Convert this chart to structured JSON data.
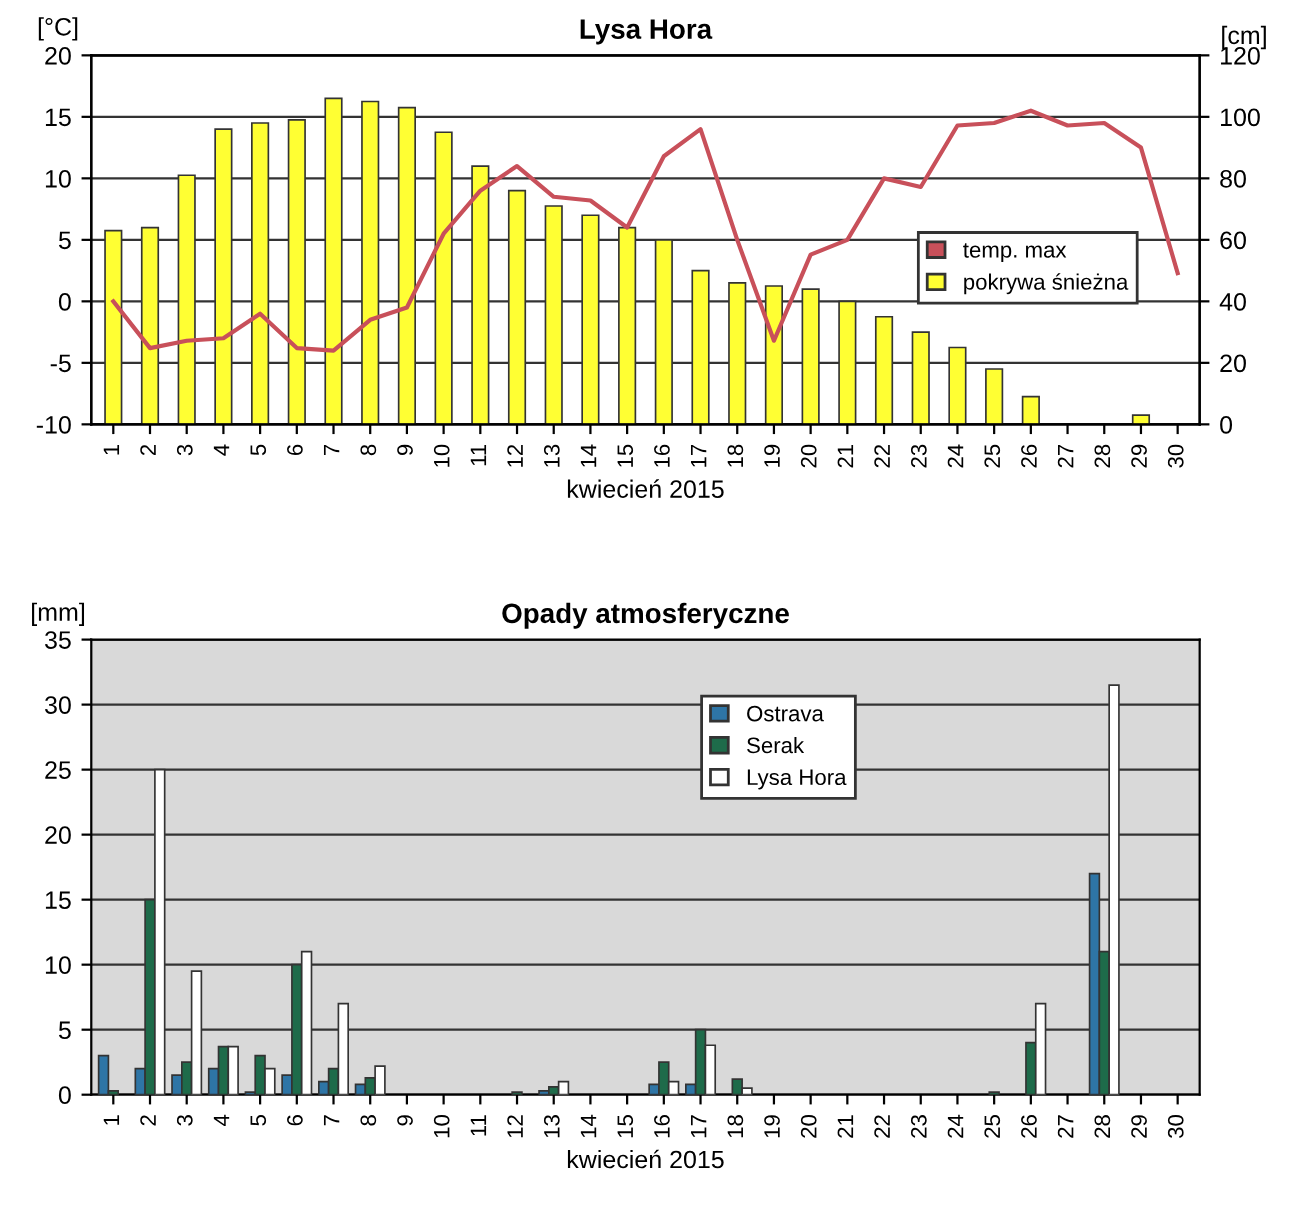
{
  "chart_data": [
    {
      "type": "bar",
      "title": "Lysa Hora",
      "xlabel": "kwiecień 2015",
      "ylabel": "[°C]",
      "y2label": "[cm]",
      "categories": [
        "1",
        "2",
        "3",
        "4",
        "5",
        "6",
        "7",
        "8",
        "9",
        "10",
        "11",
        "12",
        "13",
        "14",
        "15",
        "16",
        "17",
        "18",
        "19",
        "20",
        "21",
        "22",
        "23",
        "24",
        "25",
        "26",
        "27",
        "28",
        "29",
        "30"
      ],
      "series": [
        {
          "name": "temp. max",
          "type": "line",
          "color": "#c8505a",
          "values": [
            0,
            -3.8,
            -3.2,
            -3,
            -1,
            -3.8,
            -4,
            -1.5,
            -0.5,
            5.5,
            9,
            11,
            8.5,
            8.2,
            6,
            11.8,
            14,
            5,
            -3.2,
            3.8,
            5,
            10,
            9.3,
            14.3,
            14.5,
            15.5,
            14.3,
            14.5,
            12.5,
            2.3
          ]
        },
        {
          "name": "pokrywa śnieżna",
          "type": "bar",
          "axis": "y2",
          "color": "#ffff33",
          "values": [
            63,
            64,
            81,
            96,
            98,
            99,
            106,
            105,
            103,
            95,
            84,
            76,
            71,
            68,
            64,
            60,
            50,
            46,
            45,
            44,
            40,
            35,
            30,
            25,
            18,
            9,
            null,
            null,
            3,
            null
          ]
        }
      ],
      "ylim": [
        -10,
        20
      ],
      "yticks": [
        -10,
        -5,
        0,
        5,
        10,
        15,
        20
      ],
      "y2lim": [
        0,
        120
      ],
      "y2ticks": [
        0,
        20,
        40,
        60,
        80,
        100,
        120
      ],
      "grid": "y",
      "legend": "right",
      "marker": "none",
      "line_style": "solid"
    },
    {
      "type": "bar",
      "title": "Opady atmosferyczne",
      "xlabel": "kwiecień 2015",
      "ylabel": "[mm]",
      "categories": [
        "1",
        "2",
        "3",
        "4",
        "5",
        "6",
        "7",
        "8",
        "9",
        "10",
        "11",
        "12",
        "13",
        "14",
        "15",
        "16",
        "17",
        "18",
        "19",
        "20",
        "21",
        "22",
        "23",
        "24",
        "25",
        "26",
        "27",
        "28",
        "29",
        "30"
      ],
      "series": [
        {
          "name": "Ostrava",
          "color": "#2e75a6",
          "values": [
            3,
            2,
            1.5,
            2,
            0.2,
            1.5,
            1,
            0.8,
            null,
            null,
            null,
            null,
            0.3,
            null,
            null,
            0.8,
            0.8,
            null,
            null,
            null,
            null,
            null,
            null,
            null,
            null,
            null,
            null,
            17,
            null,
            null
          ]
        },
        {
          "name": "Serak",
          "color": "#1e6b4a",
          "values": [
            0.3,
            15,
            2.5,
            3.7,
            3,
            10,
            2,
            1.3,
            null,
            null,
            null,
            0.2,
            0.6,
            null,
            null,
            2.5,
            5,
            1.2,
            null,
            null,
            null,
            null,
            null,
            null,
            0.2,
            4,
            null,
            11,
            null,
            null
          ]
        },
        {
          "name": "Lysa Hora",
          "color": "#ffffff",
          "values": [
            null,
            25,
            9.5,
            3.7,
            2,
            11,
            7,
            2.2,
            null,
            null,
            null,
            null,
            1,
            null,
            null,
            1,
            3.8,
            0.5,
            null,
            null,
            null,
            null,
            null,
            null,
            null,
            7,
            null,
            31.5,
            null,
            null
          ]
        }
      ],
      "ylim": [
        0,
        35
      ],
      "yticks": [
        0,
        5,
        10,
        15,
        20,
        25,
        30,
        35
      ],
      "grid": "y",
      "legend": "top center"
    }
  ]
}
